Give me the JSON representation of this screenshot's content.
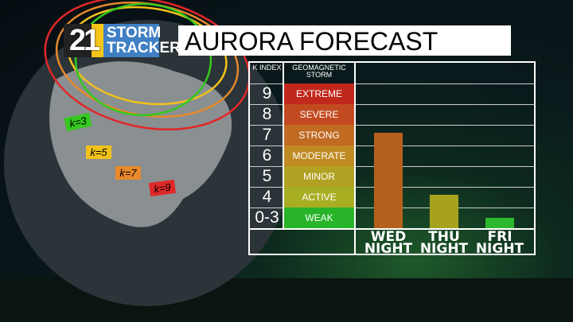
{
  "logo": {
    "number": "21",
    "line1": "STORM",
    "line2": "TRACKER"
  },
  "title": "AURORA FORECAST",
  "map": {
    "rings": [
      {
        "label": "k=3",
        "color": "#34c81e"
      },
      {
        "label": "k=5",
        "color": "#f2c21a"
      },
      {
        "label": "k=7",
        "color": "#e8892a"
      },
      {
        "label": "k=9",
        "color": "#e02828"
      }
    ]
  },
  "chart_data": {
    "type": "bar",
    "header": {
      "k": "K INDEX",
      "storm": "GEOMAGNETIC STORM"
    },
    "levels": [
      {
        "k": "9",
        "storm": "EXTREME",
        "color": "#c0281c"
      },
      {
        "k": "8",
        "storm": "SEVERE",
        "color": "#c24a20"
      },
      {
        "k": "7",
        "storm": "STRONG",
        "color": "#c06a22"
      },
      {
        "k": "6",
        "storm": "MODERATE",
        "color": "#c08a22"
      },
      {
        "k": "5",
        "storm": "MINOR",
        "color": "#b2a022"
      },
      {
        "k": "4",
        "storm": "ACTIVE",
        "color": "#a8ae22"
      },
      {
        "k": "0-3",
        "storm": "WEAK",
        "color": "#28b428"
      }
    ],
    "categories": [
      "WED NIGHT",
      "THU NIGHT",
      "FRI NIGHT"
    ],
    "values": [
      7,
      4,
      3
    ],
    "bar_colors": [
      "#b5601c",
      "#a7a21e",
      "#2cb82c"
    ]
  }
}
